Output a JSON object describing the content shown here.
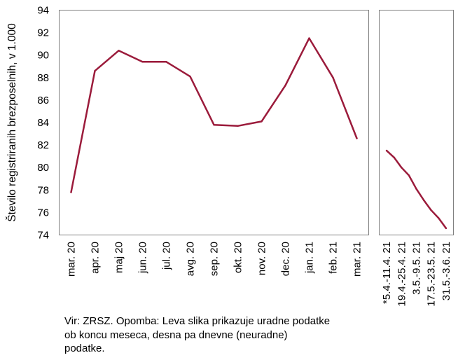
{
  "chart_data": [
    {
      "type": "line",
      "ylabel": "Število registriranih brezposelnih, v 1.000",
      "ylim": [
        74,
        94
      ],
      "yticks": [
        74,
        76,
        78,
        80,
        82,
        84,
        86,
        88,
        90,
        92,
        94
      ],
      "grid": false,
      "categories": [
        "mar. 20",
        "apr. 20",
        "maj 20",
        "jun. 20",
        "jul. 20",
        "avg. 20",
        "sep. 20",
        "okt. 20",
        "nov. 20",
        "dec. 20",
        "jan. 21",
        "feb. 21",
        "mar. 21"
      ],
      "values": [
        77.8,
        88.6,
        90.4,
        89.4,
        89.4,
        88.1,
        83.8,
        83.7,
        84.1,
        87.3,
        91.5,
        88.0,
        82.6
      ],
      "color": "#9b1b3b"
    },
    {
      "type": "line",
      "ylim": [
        74,
        94
      ],
      "grid": false,
      "categories": [
        "*5.4.-11.4. 21",
        "19.4.-25.4. 21",
        "3.5.-9.5. 21",
        "17.5.-23.5. 21",
        "31.5.-3.6. 21"
      ],
      "x": [
        0,
        0.5,
        1,
        1.5,
        2,
        2.5,
        3,
        3.5,
        4
      ],
      "values": [
        81.5,
        80.9,
        80.0,
        79.3,
        78.1,
        77.1,
        76.2,
        75.5,
        74.6
      ],
      "color": "#9b1b3b"
    }
  ],
  "note": "Vir: ZRSZ. Opomba: Leva slika prikazuje uradne podatke ob koncu meseca, desna pa dnevne (neuradne) podatke."
}
